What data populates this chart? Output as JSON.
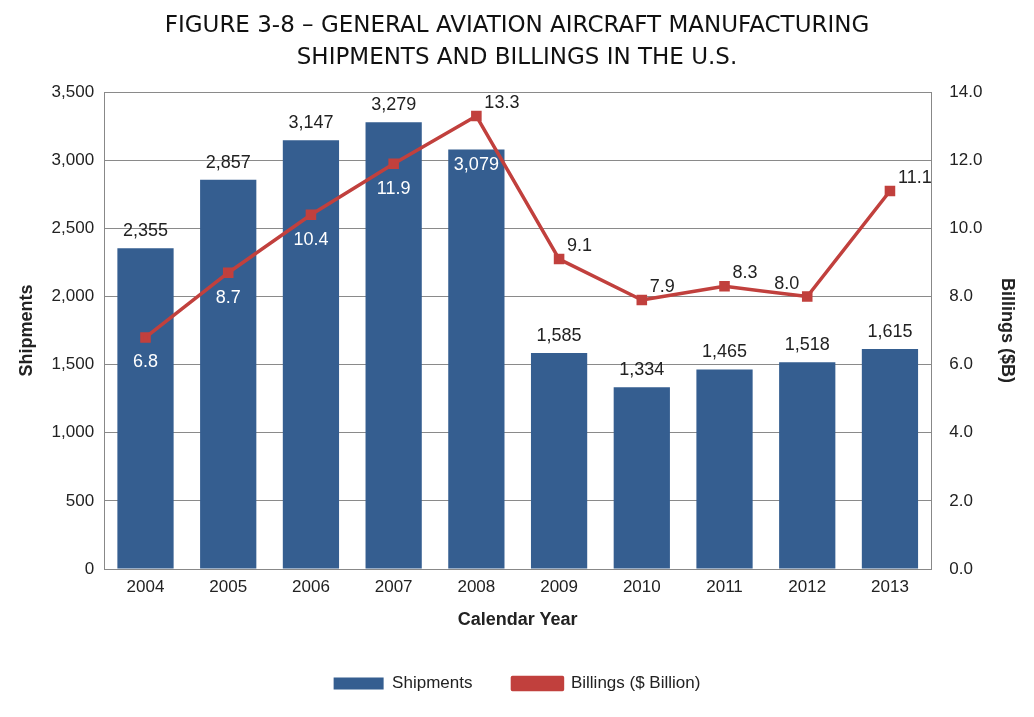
{
  "chart_data": {
    "type": "bar",
    "title": "FIGURE 3-8 – GENERAL AVIATION AIRCRAFT MANUFACTURING SHIPMENTS AND BILLINGS IN THE U.S.",
    "xlabel": "Calendar Year",
    "ylabel": "Shipments",
    "y2label": "Billings ($B)",
    "categories": [
      "2004",
      "2005",
      "2006",
      "2007",
      "2008",
      "2009",
      "2010",
      "2011",
      "2012",
      "2013"
    ],
    "series": [
      {
        "name": "Shipments",
        "color": "#355e90",
        "values": [
          2355,
          2857,
          3147,
          3279,
          3079,
          1585,
          1334,
          1465,
          1518,
          1615
        ],
        "value_labels": [
          "2,355",
          "2,857",
          "3,147",
          "3,279",
          "3,079",
          "1,585",
          "1,334",
          "1,465",
          "1,518",
          "1,615"
        ]
      },
      {
        "name": "Billings ($ Billion)",
        "type": "line",
        "axis": "y2",
        "color": "#c1403d",
        "values": [
          6.8,
          8.7,
          10.4,
          11.9,
          13.3,
          9.1,
          7.9,
          8.3,
          8.0,
          11.1
        ],
        "value_labels": [
          "6.8",
          "8.7",
          "10.4",
          "11.9",
          "13.3",
          "9.1",
          "7.9",
          "8.3",
          "8.0",
          "11.1"
        ]
      }
    ],
    "ylim": [
      0,
      3500
    ],
    "yticks": [
      0,
      500,
      {
        "value": 1000,
        "label": "1,000"
      },
      {
        "value": 1500,
        "label": "1,500"
      },
      {
        "value": 2000,
        "label": "2,000"
      },
      {
        "value": 2500,
        "label": "2,500"
      },
      {
        "value": 3000,
        "label": "3,000"
      },
      {
        "value": 3500,
        "label": "3,500"
      }
    ],
    "y2lim": [
      0,
      14
    ],
    "y2ticks": [
      {
        "value": 0,
        "label": "0.0"
      },
      {
        "value": 2,
        "label": "2.0"
      },
      {
        "value": 4,
        "label": "4.0"
      },
      {
        "value": 6,
        "label": "6.0"
      },
      {
        "value": 8,
        "label": "8.0"
      },
      {
        "value": 10,
        "label": "10.0"
      },
      {
        "value": 12,
        "label": "12.0"
      },
      {
        "value": 14,
        "label": "14.0"
      }
    ],
    "grid": "y",
    "legend": "bottom",
    "marker": "square",
    "line_style": "solid"
  }
}
